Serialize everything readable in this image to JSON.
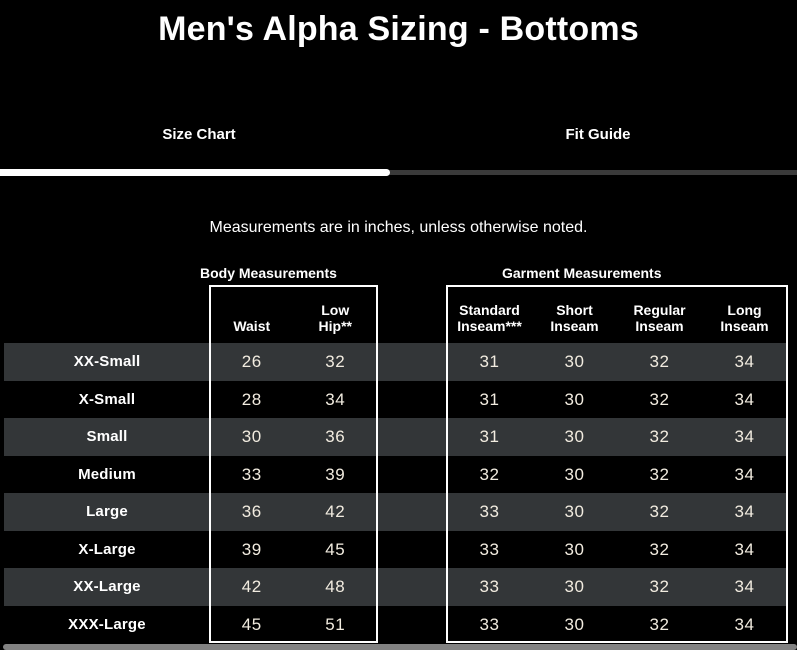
{
  "page": {
    "title": "Men's Alpha Sizing - Bottoms",
    "note": "Measurements are in inches, unless otherwise noted."
  },
  "tabs": [
    {
      "label": "Size Chart",
      "active": true
    },
    {
      "label": "Fit Guide",
      "active": false
    }
  ],
  "table": {
    "groups": [
      {
        "label": "Body Measurements",
        "columns": [
          {
            "label": "Waist",
            "lines": [
              "Waist"
            ]
          },
          {
            "label": "Low Hip**",
            "lines": [
              "Low",
              "Hip**"
            ]
          }
        ]
      },
      {
        "label": "Garment Measurements",
        "columns": [
          {
            "label": "Standard Inseam***",
            "lines": [
              "Standard",
              "Inseam***"
            ]
          },
          {
            "label": "Short Inseam",
            "lines": [
              "Short",
              "Inseam"
            ]
          },
          {
            "label": "Regular Inseam",
            "lines": [
              "Regular",
              "Inseam"
            ]
          },
          {
            "label": "Long Inseam",
            "lines": [
              "Long",
              "Inseam"
            ]
          }
        ]
      }
    ],
    "rows": [
      {
        "size": "XX-Small",
        "body": [
          26,
          32
        ],
        "garment": [
          31,
          30,
          32,
          34
        ]
      },
      {
        "size": "X-Small",
        "body": [
          28,
          34
        ],
        "garment": [
          31,
          30,
          32,
          34
        ]
      },
      {
        "size": "Small",
        "body": [
          30,
          36
        ],
        "garment": [
          31,
          30,
          32,
          34
        ]
      },
      {
        "size": "Medium",
        "body": [
          33,
          39
        ],
        "garment": [
          32,
          30,
          32,
          34
        ]
      },
      {
        "size": "Large",
        "body": [
          36,
          42
        ],
        "garment": [
          33,
          30,
          32,
          34
        ]
      },
      {
        "size": "X-Large",
        "body": [
          39,
          45
        ],
        "garment": [
          33,
          30,
          32,
          34
        ]
      },
      {
        "size": "XX-Large",
        "body": [
          42,
          48
        ],
        "garment": [
          33,
          30,
          32,
          34
        ]
      },
      {
        "size": "XXX-Large",
        "body": [
          45,
          51
        ],
        "garment": [
          33,
          30,
          32,
          34
        ]
      }
    ]
  },
  "colors": {
    "background": "#000000",
    "stripe_row": "#333638",
    "active_tab_indicator": "#ffffff",
    "inactive_tab_track": "#3a3a3a",
    "table_border": "#ffffff",
    "scrollbar": "#828282",
    "heading_text": "#ffffff",
    "number_text": "#f2ece0"
  }
}
